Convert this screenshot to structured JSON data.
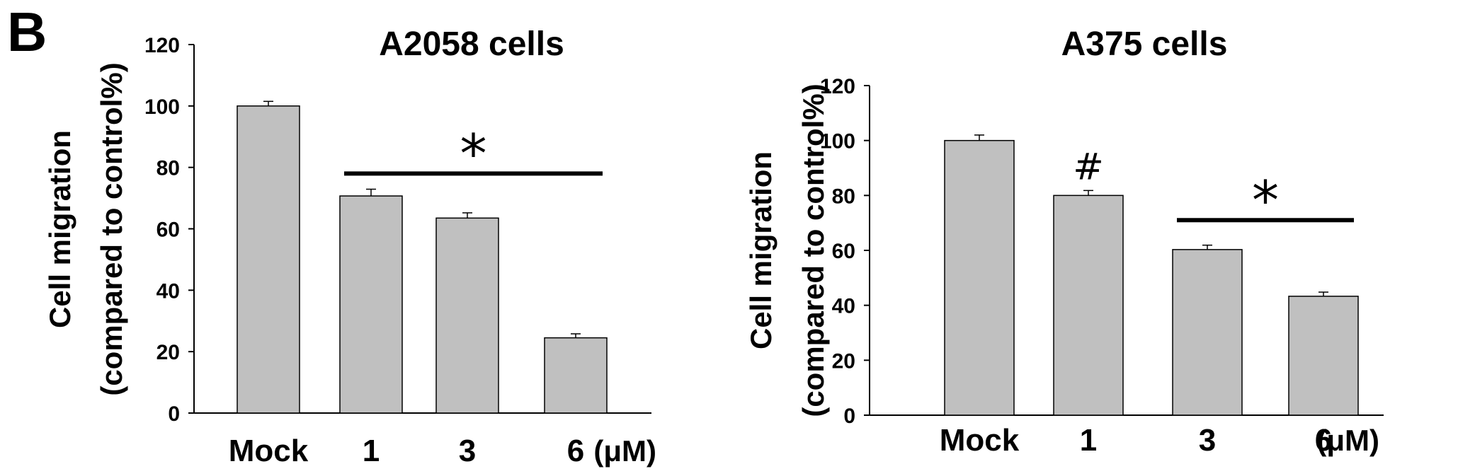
{
  "panel_label": "B",
  "chart_data": [
    {
      "type": "bar",
      "title": "A2058 cells",
      "ylabel_line1": "Cell migration",
      "ylabel_line2": "(compared to control%)",
      "xunit": "(μM)",
      "categories": [
        "Mock",
        "1",
        "3",
        "6"
      ],
      "values": [
        100,
        70.7,
        63.5,
        24.5
      ],
      "errors": [
        1.5,
        2.2,
        1.7,
        1.3
      ],
      "ylim": [
        0,
        120
      ],
      "yticks": [
        0,
        20,
        40,
        60,
        80,
        100,
        120
      ],
      "annotations": [
        {
          "symbol": "*",
          "type": "significance-bar",
          "from_category": "1",
          "to_category": "6",
          "y": 78
        }
      ],
      "bar_color": "#c0c0c0",
      "grid": false,
      "legend": "none"
    },
    {
      "type": "bar",
      "title": "A375 cells",
      "ylabel_line1": "Cell migration",
      "ylabel_line2": "(compared to control%)",
      "xunit": "(μM)",
      "categories": [
        "Mock",
        "1",
        "3",
        "6"
      ],
      "values": [
        100,
        80,
        60.3,
        43.3
      ],
      "errors": [
        2.0,
        1.8,
        1.6,
        1.5
      ],
      "ylim": [
        0,
        120
      ],
      "yticks": [
        0,
        20,
        40,
        60,
        80,
        100,
        120
      ],
      "annotations": [
        {
          "symbol": "#",
          "type": "category-mark",
          "category": "1",
          "y": 91
        },
        {
          "symbol": "*",
          "type": "significance-bar",
          "from_category": "3",
          "to_category": "6",
          "y": 71
        }
      ],
      "bar_color": "#c0c0c0",
      "grid": false,
      "legend": "none"
    }
  ]
}
